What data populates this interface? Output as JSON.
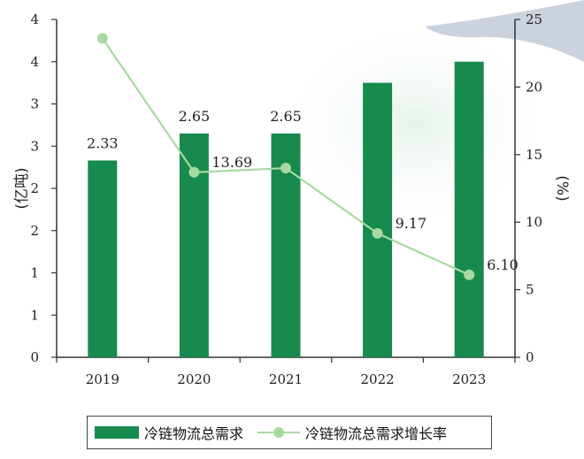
{
  "chart_data": {
    "type": "bar+line",
    "categories": [
      "2019",
      "2020",
      "2021",
      "2022",
      "2023"
    ],
    "series": [
      {
        "name": "冷链物流总需求",
        "type": "bar",
        "axis": "left",
        "values": [
          2.33,
          2.65,
          2.65,
          3.25,
          3.5
        ],
        "data_labels": [
          "2.33",
          "2.65",
          "2.65",
          "",
          ""
        ],
        "color": "#178a4d"
      },
      {
        "name": "冷链物流总需求增长率",
        "type": "line",
        "axis": "right",
        "values": [
          23.6,
          13.69,
          14.0,
          9.17,
          6.1
        ],
        "data_labels": [
          "",
          "13.69",
          "",
          "9.17",
          "6.10"
        ],
        "color": "#a9d9a2"
      }
    ],
    "y_left": {
      "label": "(亿吨)",
      "ylim": [
        0,
        4
      ],
      "tick_labels": [
        "0",
        "1",
        "1",
        "2",
        "2",
        "3",
        "3",
        "4",
        "4"
      ]
    },
    "y_right": {
      "label": "(%)",
      "ylim": [
        0,
        25
      ],
      "tick_labels": [
        "0",
        "5",
        "10",
        "15",
        "20",
        "25"
      ]
    },
    "legend": "bottom",
    "grid": false
  }
}
